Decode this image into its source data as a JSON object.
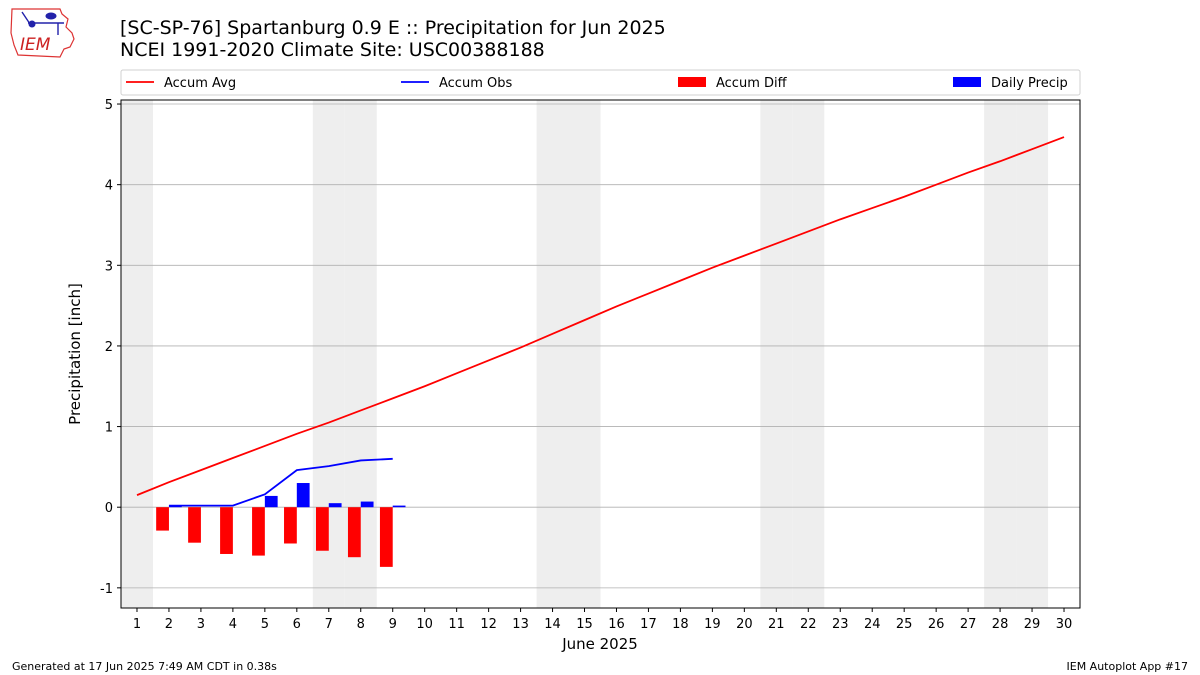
{
  "header": {
    "title_line1": "[SC-SP-76] Spartanburg 0.9 E :: Precipitation for Jun 2025",
    "title_line2": "NCEI 1991-2020 Climate Site: USC00388188"
  },
  "logo": {
    "text": "IEM"
  },
  "footer": {
    "left": "Generated at 17 Jun 2025 7:49 AM CDT in 0.38s",
    "right": "IEM Autoplot App #17"
  },
  "colors": {
    "accum_avg": "#ff0000",
    "accum_obs": "#0000ff",
    "accum_diff": "#ff0000",
    "daily_precip": "#0000ff",
    "weekend_band": "#eeeeee",
    "grid": "#b0b0b0"
  },
  "chart_data": {
    "type": "line",
    "xlabel": "June 2025",
    "ylabel": "Precipitation [inch]",
    "xlim": [
      0.5,
      30.5
    ],
    "ylim": [
      -1.25,
      5.05
    ],
    "yticks": [
      -1,
      0,
      1,
      2,
      3,
      4,
      5
    ],
    "x": [
      1,
      2,
      3,
      4,
      5,
      6,
      7,
      8,
      9,
      10,
      11,
      12,
      13,
      14,
      15,
      16,
      17,
      18,
      19,
      20,
      21,
      22,
      23,
      24,
      25,
      26,
      27,
      28,
      29,
      30
    ],
    "weekend_days": [
      1,
      7,
      8,
      14,
      15,
      21,
      22,
      28,
      29
    ],
    "grid": "horizontal",
    "legend": {
      "placement": "top",
      "columns": 4
    },
    "series": [
      {
        "name": "Accum Avg",
        "type": "line",
        "x": [
          1,
          2,
          3,
          4,
          5,
          6,
          7,
          8,
          9,
          10,
          11,
          12,
          13,
          14,
          15,
          16,
          17,
          18,
          19,
          20,
          21,
          22,
          23,
          24,
          25,
          26,
          27,
          28,
          29,
          30
        ],
        "values": [
          0.15,
          0.31,
          0.46,
          0.61,
          0.76,
          0.91,
          1.05,
          1.2,
          1.35,
          1.5,
          1.66,
          1.82,
          1.98,
          2.15,
          2.32,
          2.49,
          2.65,
          2.81,
          2.97,
          3.12,
          3.27,
          3.42,
          3.57,
          3.71,
          3.85,
          4.0,
          4.15,
          4.29,
          4.44,
          4.59
        ]
      },
      {
        "name": "Accum Obs",
        "type": "line",
        "x": [
          2,
          3,
          4,
          5,
          6,
          7,
          8,
          9
        ],
        "values": [
          0.02,
          0.02,
          0.02,
          0.16,
          0.46,
          0.51,
          0.58,
          0.6
        ]
      },
      {
        "name": "Accum Diff",
        "type": "bar",
        "x": [
          2,
          3,
          4,
          5,
          6,
          7,
          8,
          9
        ],
        "values": [
          -0.29,
          -0.44,
          -0.58,
          -0.6,
          -0.45,
          -0.54,
          -0.62,
          -0.74
        ]
      },
      {
        "name": "Daily Precip",
        "type": "bar",
        "x": [
          2,
          3,
          4,
          5,
          6,
          7,
          8,
          9
        ],
        "values": [
          0.02,
          0.0,
          0.0,
          0.14,
          0.3,
          0.05,
          0.07,
          0.02
        ]
      }
    ]
  }
}
